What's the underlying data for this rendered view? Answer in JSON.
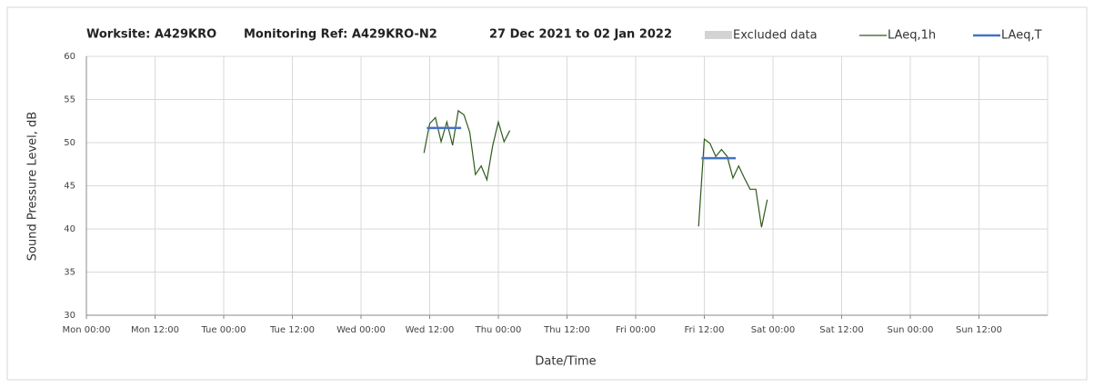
{
  "chart_data": {
    "type": "line",
    "title": [
      "Worksite: A429KRO",
      "Monitoring Ref: A429KRO-N2",
      "27 Dec 2021 to 02 Jan 2022"
    ],
    "xlabel": "Date/Time",
    "ylabel": "Sound Pressure Level, dB",
    "xlim": [
      0,
      168
    ],
    "xticks": [
      {
        "value": 0,
        "label": "Mon 00:00"
      },
      {
        "value": 12,
        "label": "Mon 12:00"
      },
      {
        "value": 24,
        "label": "Tue 00:00"
      },
      {
        "value": 36,
        "label": "Tue 12:00"
      },
      {
        "value": 48,
        "label": "Wed 00:00"
      },
      {
        "value": 60,
        "label": "Wed 12:00"
      },
      {
        "value": 72,
        "label": "Thu 00:00"
      },
      {
        "value": 84,
        "label": "Thu 12:00"
      },
      {
        "value": 96,
        "label": "Fri 00:00"
      },
      {
        "value": 108,
        "label": "Fri 12:00"
      },
      {
        "value": 120,
        "label": "Sat 00:00"
      },
      {
        "value": 132,
        "label": "Sat 12:00"
      },
      {
        "value": 144,
        "label": "Sun 00:00"
      },
      {
        "value": 156,
        "label": "Sun 12:00"
      }
    ],
    "ylim": [
      30,
      60
    ],
    "yticks": [
      30,
      35,
      40,
      45,
      50,
      55,
      60
    ],
    "grid": true,
    "legend": [
      {
        "name": "Excluded data",
        "color": "#d3d3d3"
      },
      {
        "name": "LAeq,1h",
        "color": "#2e5a1c"
      },
      {
        "name": "LAeq,T",
        "color": "#4472c4"
      }
    ],
    "series": [
      {
        "name": "LAeq,1h",
        "color": "#2e5a1c",
        "x": [
          59,
          60,
          61,
          62,
          63,
          64,
          65,
          66,
          67,
          68,
          69,
          70,
          71,
          72,
          73,
          74,
          75,
          107,
          108,
          109,
          110,
          111,
          112,
          113,
          114,
          115,
          116,
          117,
          118,
          119
        ],
        "values": [
          48.8,
          52.2,
          52.9,
          50.1,
          52.4,
          49.7,
          53.7,
          53.2,
          51.2,
          46.3,
          47.3,
          45.7,
          49.6,
          52.4,
          50.1,
          51.4,
          null,
          40.3,
          50.4,
          49.9,
          48.4,
          49.2,
          48.4,
          45.9,
          47.3,
          45.9,
          44.6,
          44.6,
          40.2,
          43.4
        ]
      }
    ],
    "segments": {
      "name": "LAeq,T",
      "color": "#4472c4",
      "items": [
        {
          "x": [
            59.5,
            65.5
          ],
          "value": 51.7
        },
        {
          "x": [
            107.5,
            113.5
          ],
          "value": 48.2
        }
      ]
    }
  }
}
